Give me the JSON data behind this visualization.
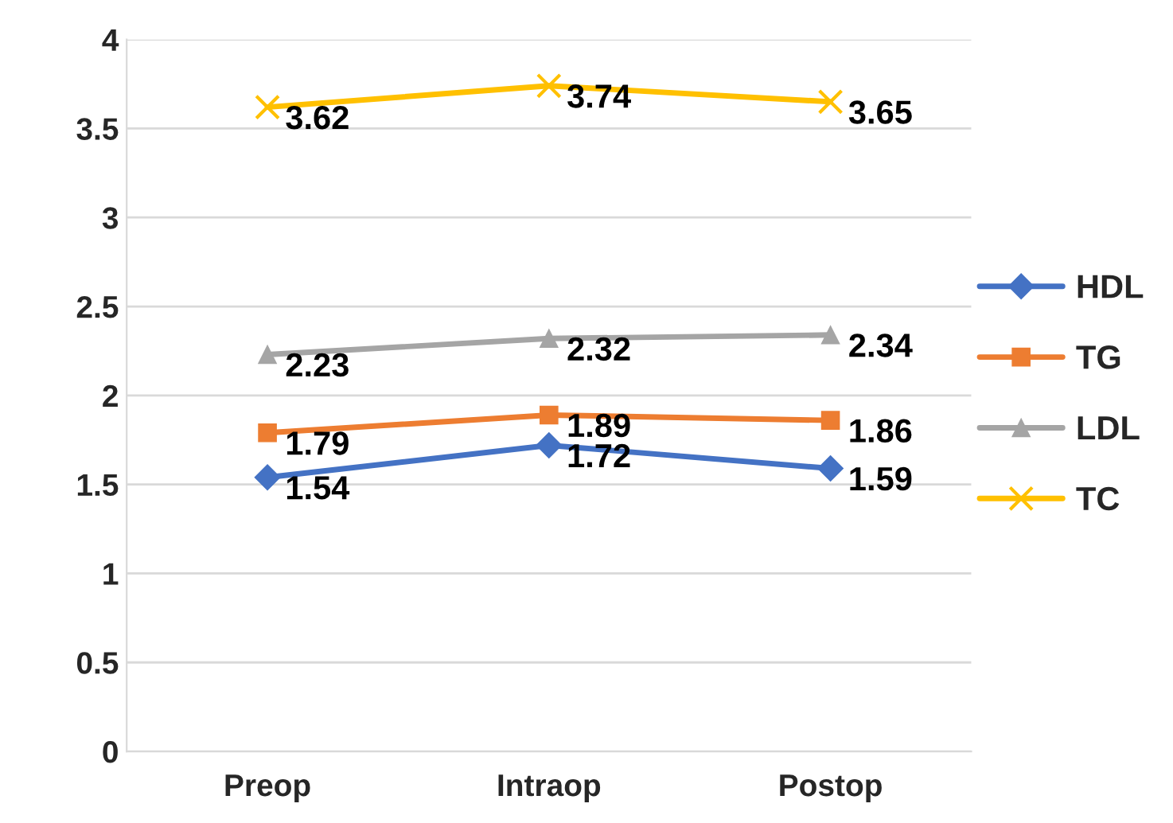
{
  "chart_data": {
    "type": "line",
    "categories": [
      "Preop",
      "Intraop",
      "Postop"
    ],
    "series": [
      {
        "name": "HDL",
        "color": "#4472c4",
        "marker": "diamond",
        "values": [
          1.54,
          1.72,
          1.59
        ]
      },
      {
        "name": "TG",
        "color": "#ed7d31",
        "marker": "square",
        "values": [
          1.79,
          1.89,
          1.86
        ]
      },
      {
        "name": "LDL",
        "color": "#a5a5a5",
        "marker": "triangle",
        "values": [
          2.23,
          2.32,
          2.34
        ]
      },
      {
        "name": "TC",
        "color": "#ffc000",
        "marker": "cross",
        "values": [
          3.62,
          3.74,
          3.65
        ]
      }
    ],
    "ylim": [
      0,
      4
    ],
    "yticks": [
      0,
      0.5,
      1,
      1.5,
      2,
      2.5,
      3,
      3.5,
      4
    ],
    "grid": "y",
    "legend": "right",
    "data_labels": true,
    "line_style": "solid"
  }
}
